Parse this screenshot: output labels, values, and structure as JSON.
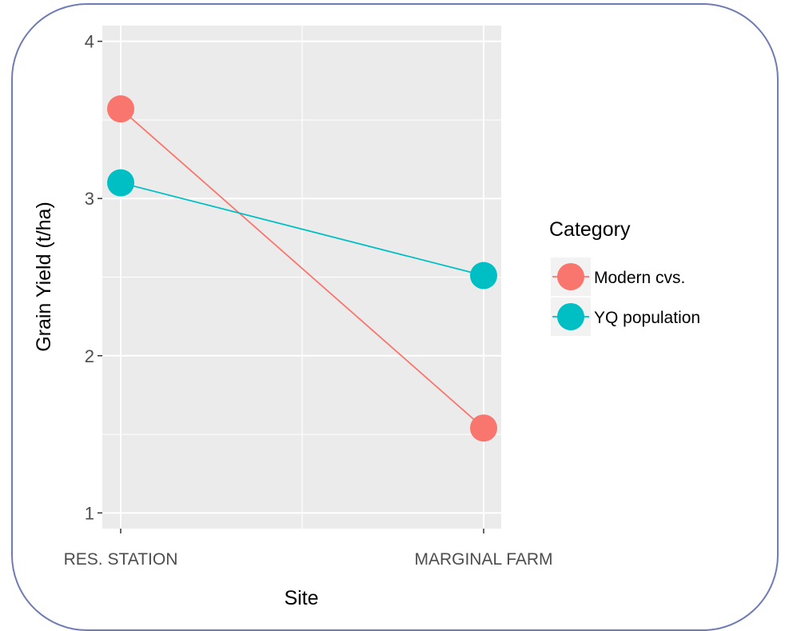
{
  "chart_data": {
    "type": "line",
    "categories": [
      "RES. STATION",
      "MARGINAL FARM"
    ],
    "series": [
      {
        "name": "Modern cvs.",
        "values": [
          3.57,
          1.54
        ],
        "color": "#f8766d"
      },
      {
        "name": "YQ population",
        "values": [
          3.1,
          2.51
        ],
        "color": "#00bfc4"
      }
    ],
    "xlabel": "Site",
    "ylabel": "Grain Yield (t/ha)",
    "yticks": [
      "1",
      "2",
      "3",
      "4"
    ],
    "ylim": [
      0.9,
      4.1
    ],
    "legend": {
      "title": "Category",
      "position": "right"
    },
    "grid": true,
    "panel_background": "#ebebeb",
    "grid_color": "#ffffff"
  }
}
